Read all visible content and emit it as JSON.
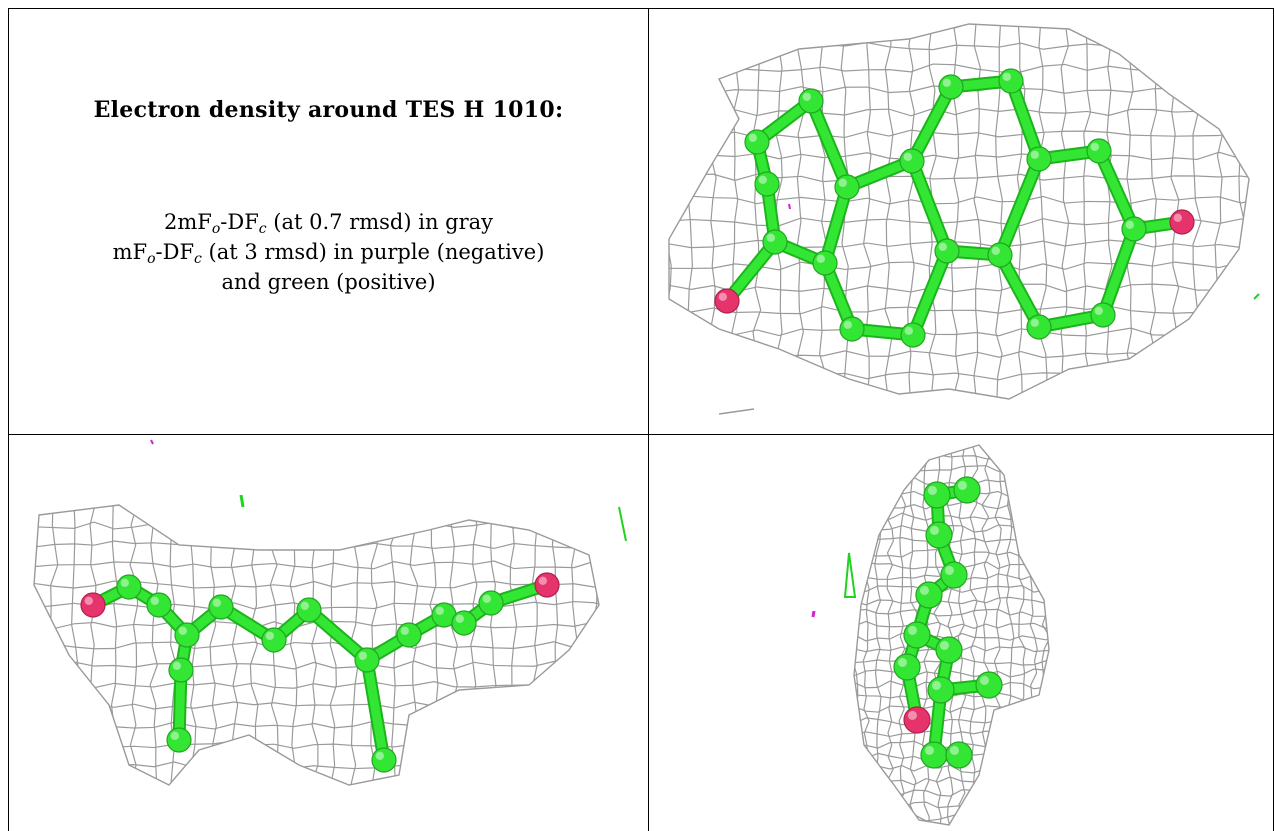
{
  "caption": {
    "heading": "Electron density around TES H 1010:",
    "line1": {
      "a": "2mF",
      "o": "o",
      "b": "-DF",
      "c": "c",
      "rest": " (at 0.7 rmsd) in gray"
    },
    "line2": {
      "a": "mF",
      "o": "o",
      "b": "-DF",
      "c": "c",
      "rest": " (at 3 rmsd) in purple (negative)"
    },
    "line3": "and green (positive)"
  },
  "colors": {
    "mesh": "#9a9a9a",
    "carbon": "#33e633",
    "oxygen": "#e6336b",
    "positive": "#1fd31f",
    "negative": "#d61fd6",
    "border": "#000000"
  },
  "panels": [
    {
      "name": "view-top",
      "description_icon": "molecule-mesh-icon"
    },
    {
      "name": "view-side",
      "description_icon": "molecule-mesh-icon"
    },
    {
      "name": "view-edge",
      "description_icon": "molecule-mesh-icon"
    }
  ]
}
